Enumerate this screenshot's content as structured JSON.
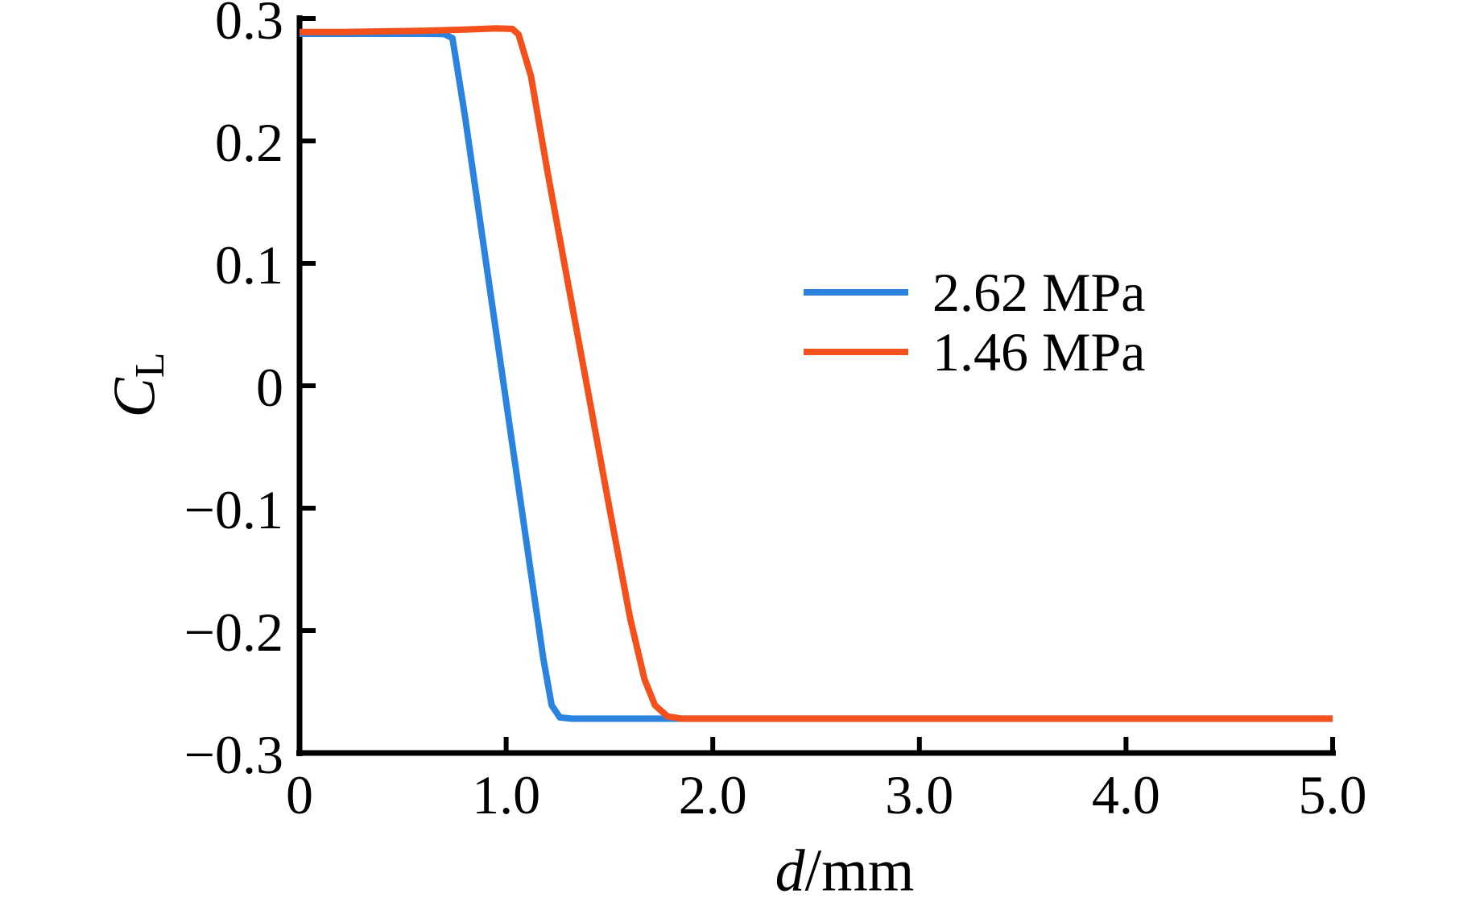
{
  "figure": {
    "background": "#ffffff",
    "ylabel": {
      "base": "C",
      "sub": "L"
    },
    "xlabel": {
      "italic": "d",
      "rest": "/mm"
    }
  },
  "legend": {
    "position": "center-right",
    "entries": [
      {
        "label": "2.62 MPa",
        "color": "#2b83e0"
      },
      {
        "label": "1.46 MPa",
        "color": "#f4501c"
      }
    ]
  },
  "chart_data": {
    "type": "line",
    "title": "",
    "xlabel": "d/mm",
    "ylabel": "C_L",
    "xlim": [
      0,
      5.0
    ],
    "ylim": [
      -0.3,
      0.3
    ],
    "grid": false,
    "legend_position": "center-right",
    "x_ticks": [
      0,
      1.0,
      2.0,
      3.0,
      4.0,
      5.0
    ],
    "x_tick_labels": [
      "0",
      "1.0",
      "2.0",
      "3.0",
      "4.0",
      "5.0"
    ],
    "y_ticks": [
      0.3,
      0.2,
      0.1,
      0,
      -0.1,
      -0.2,
      -0.3
    ],
    "y_tick_labels": [
      "0.3",
      "0.2",
      "0.1",
      "0",
      "−0.1",
      "−0.2",
      "−0.3"
    ],
    "axis_color": "#000000",
    "series": [
      {
        "name": "2.62 MPa",
        "color": "#2b83e0",
        "points": [
          [
            0,
            0.2875
          ],
          [
            0.2,
            0.2875
          ],
          [
            0.4,
            0.2875
          ],
          [
            0.6,
            0.2875
          ],
          [
            0.7,
            0.2873
          ],
          [
            0.74,
            0.284
          ],
          [
            0.8,
            0.221
          ],
          [
            0.9,
            0.104
          ],
          [
            1.0,
            -0.013
          ],
          [
            1.1,
            -0.13
          ],
          [
            1.18,
            -0.223
          ],
          [
            1.22,
            -0.261
          ],
          [
            1.26,
            -0.271
          ],
          [
            1.32,
            -0.272
          ],
          [
            1.6,
            -0.272
          ],
          [
            2.0,
            -0.272
          ],
          [
            2.5,
            -0.272
          ],
          [
            3.0,
            -0.272
          ],
          [
            3.5,
            -0.272
          ],
          [
            4.0,
            -0.272
          ],
          [
            4.5,
            -0.272
          ],
          [
            5.0,
            -0.272
          ]
        ]
      },
      {
        "name": "1.46 MPa",
        "color": "#f4501c",
        "points": [
          [
            0,
            0.289
          ],
          [
            0.2,
            0.289
          ],
          [
            0.4,
            0.2895
          ],
          [
            0.6,
            0.29
          ],
          [
            0.8,
            0.291
          ],
          [
            0.95,
            0.292
          ],
          [
            1.03,
            0.2915
          ],
          [
            1.06,
            0.287
          ],
          [
            1.12,
            0.253
          ],
          [
            1.2,
            0.175
          ],
          [
            1.3,
            0.083
          ],
          [
            1.4,
            -0.008
          ],
          [
            1.5,
            -0.1
          ],
          [
            1.6,
            -0.19
          ],
          [
            1.67,
            -0.24
          ],
          [
            1.72,
            -0.261
          ],
          [
            1.78,
            -0.27
          ],
          [
            1.85,
            -0.272
          ],
          [
            2.2,
            -0.272
          ],
          [
            2.6,
            -0.272
          ],
          [
            3.0,
            -0.272
          ],
          [
            3.5,
            -0.272
          ],
          [
            4.0,
            -0.272
          ],
          [
            4.5,
            -0.272
          ],
          [
            5.0,
            -0.272
          ]
        ]
      }
    ]
  }
}
